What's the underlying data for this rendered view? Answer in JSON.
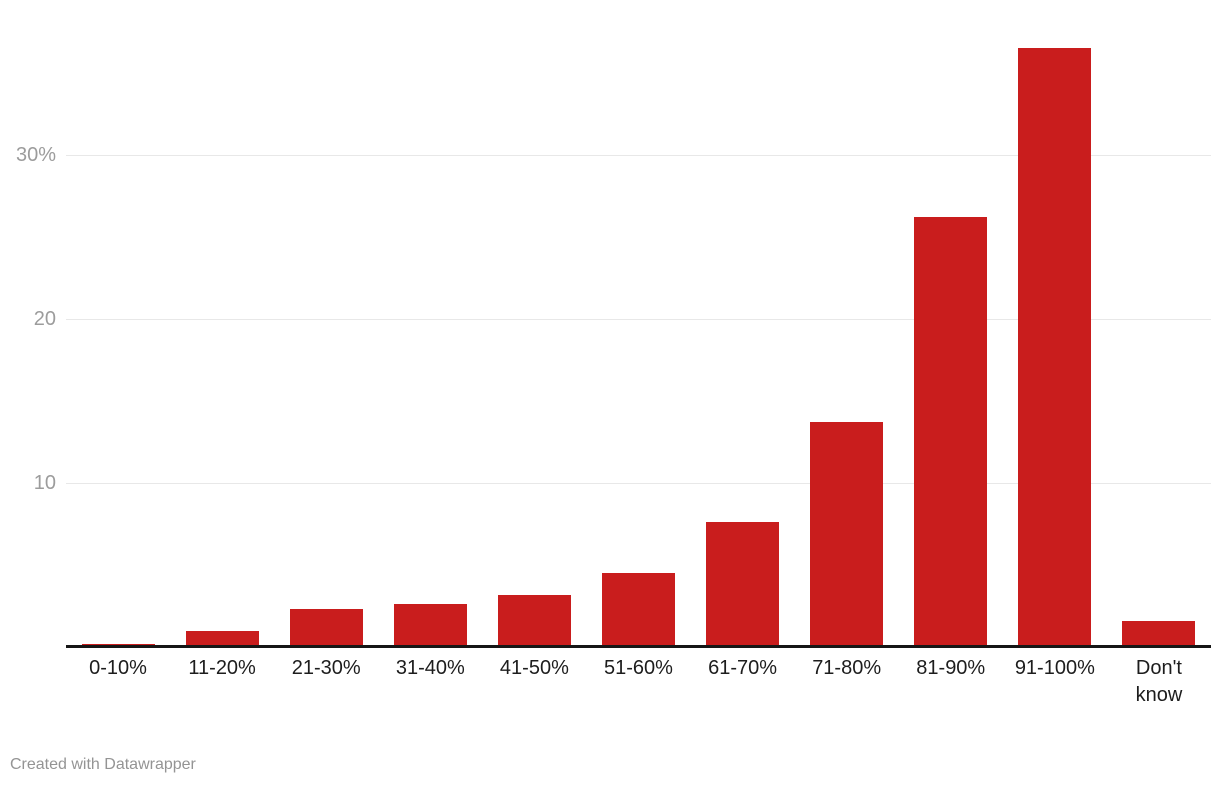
{
  "chart_data": {
    "type": "bar",
    "title": "",
    "xlabel": "",
    "ylabel": "",
    "categories": [
      "0-10%",
      "11-20%",
      "21-30%",
      "31-40%",
      "41-50%",
      "51-60%",
      "61-70%",
      "71-80%",
      "81-90%",
      "91-100%",
      "Don't know"
    ],
    "xtick_display": [
      "0-10%",
      "11-20%",
      "21-30%",
      "31-40%",
      "41-50%",
      "51-60%",
      "61-70%",
      "71-80%",
      "81-90%",
      "91-100%",
      "Don't\nknow"
    ],
    "values": [
      0.2,
      1,
      2.3,
      2.6,
      3.2,
      4.5,
      7.6,
      13.7,
      26.2,
      36.5,
      1.6
    ],
    "ylim": [
      0,
      39.5
    ],
    "yticks": [
      {
        "value": 10,
        "label": "10"
      },
      {
        "value": 20,
        "label": "20"
      },
      {
        "value": 30,
        "label": "30%"
      }
    ],
    "grid": true,
    "legend_position": "none",
    "bar_color": "#c91d1d"
  },
  "colors": {
    "bar": "#c91d1d",
    "gridline": "#e8e8e8",
    "axis_line": "#161616",
    "xtick_text": "#1d1d1d",
    "ytick_text": "#9c9c9c",
    "footer_text": "#949494",
    "background": "#ffffff"
  },
  "footer": {
    "attribution": "Created with Datawrapper"
  }
}
